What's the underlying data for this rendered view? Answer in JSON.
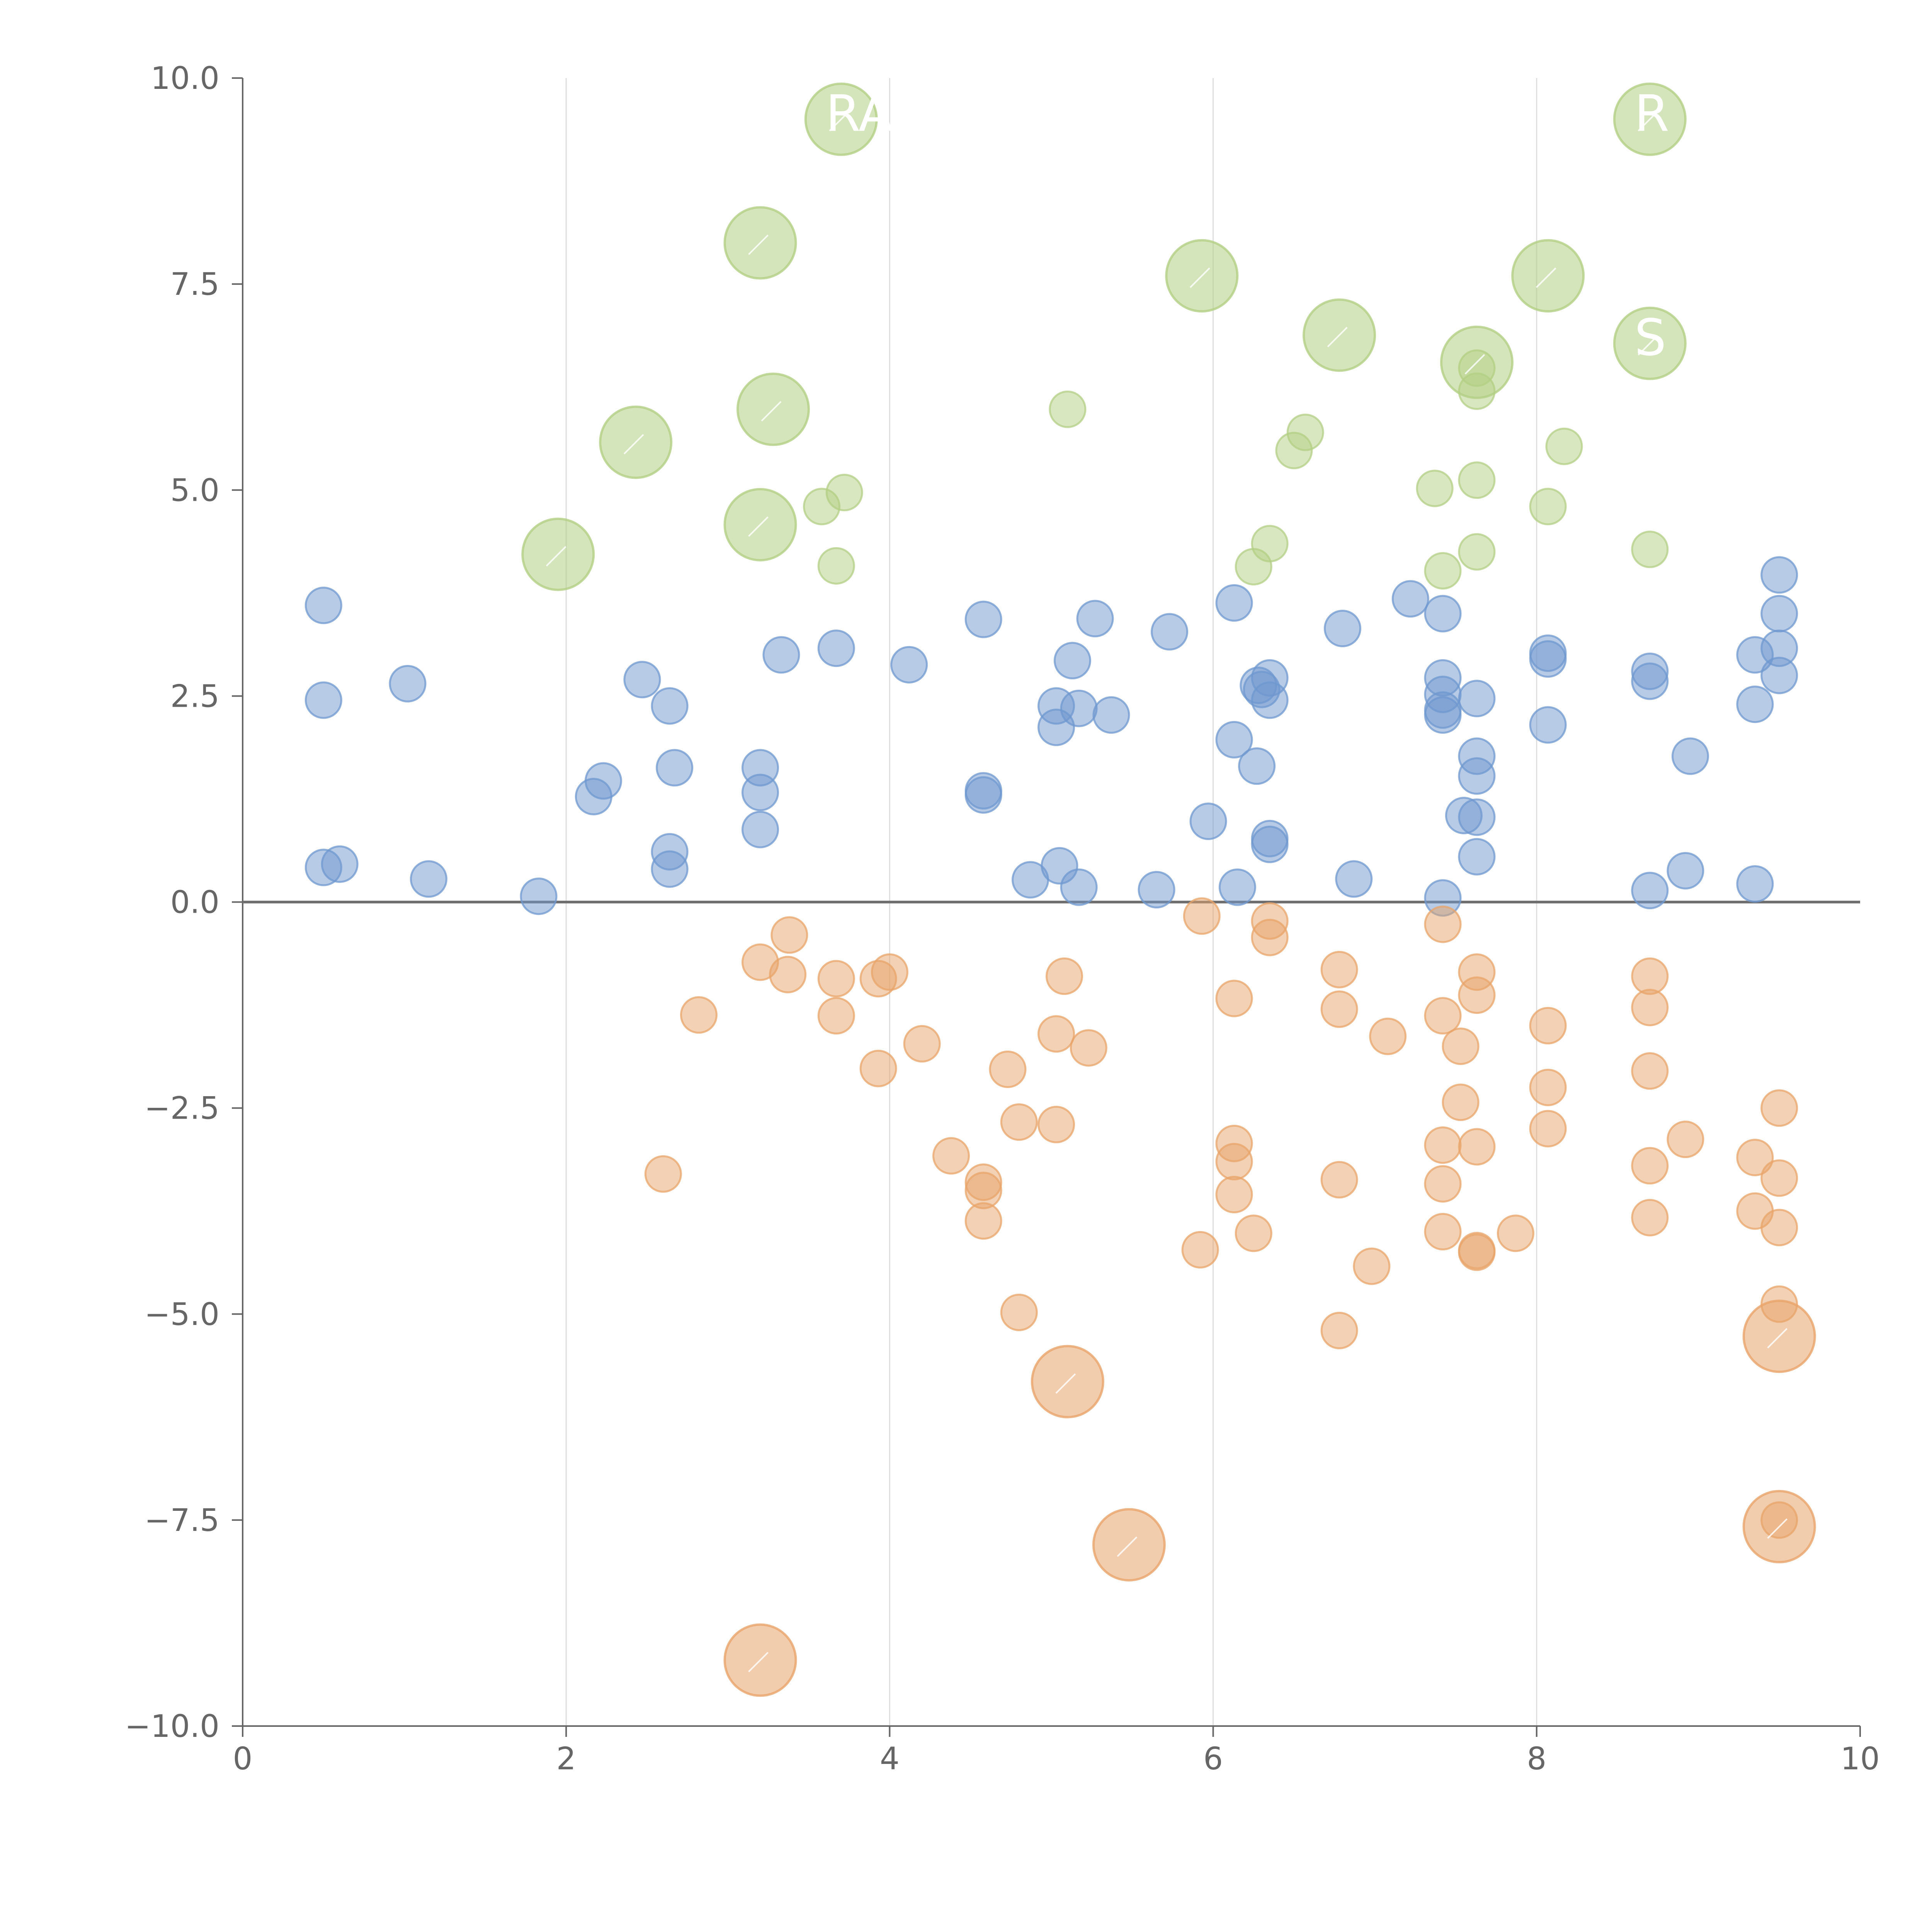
{
  "chart_data": {
    "type": "scatter",
    "title": "",
    "xlabel": "",
    "ylabel": "",
    "xlim": [
      0,
      10
    ],
    "ylim": [
      -10,
      10
    ],
    "x_ticks": [
      "0",
      "2",
      "4",
      "6",
      "8",
      "10"
    ],
    "y_ticks": [
      "10.0",
      "7.5",
      "5.0",
      "2.5",
      "0.0",
      "−2.5",
      "−5.0",
      "−7.5",
      "−10.0"
    ],
    "x_tick_values": [
      0,
      2,
      4,
      6,
      8,
      10
    ],
    "y_tick_values": [
      10,
      7.5,
      5,
      2.5,
      0,
      -2.5,
      -5,
      -7.5,
      -10
    ],
    "vertical_gridlines_at": [
      2,
      4,
      6,
      8
    ],
    "zero_line": true,
    "colors": {
      "positive": "#6f98cf",
      "negative": "#e8a46a",
      "highlight": "#b3cf84",
      "axis": "#666666",
      "grid": "#dddddd",
      "zero_line": "#707070"
    },
    "series": [
      {
        "name": "positive",
        "color": "#6f98cf",
        "points": [
          [
            0.5,
            3.6
          ],
          [
            0.5,
            2.45
          ],
          [
            0.5,
            0.42
          ],
          [
            0.6,
            0.46
          ],
          [
            1.02,
            2.65
          ],
          [
            1.15,
            0.28
          ],
          [
            1.83,
            0.07
          ],
          [
            2.17,
            1.28
          ],
          [
            2.23,
            1.47
          ],
          [
            2.47,
            2.7
          ],
          [
            2.64,
            2.38
          ],
          [
            2.64,
            0.61
          ],
          [
            2.64,
            0.4
          ],
          [
            2.67,
            1.63
          ],
          [
            3.2,
            1.63
          ],
          [
            3.2,
            1.33
          ],
          [
            3.2,
            0.88
          ],
          [
            3.33,
            3.0
          ],
          [
            3.67,
            3.08
          ],
          [
            4.12,
            2.88
          ],
          [
            4.58,
            3.43
          ],
          [
            4.58,
            1.35
          ],
          [
            4.58,
            1.3
          ],
          [
            4.87,
            0.27
          ],
          [
            5.03,
            2.38
          ],
          [
            5.03,
            2.12
          ],
          [
            5.05,
            0.44
          ],
          [
            5.13,
            2.93
          ],
          [
            5.17,
            2.35
          ],
          [
            5.17,
            0.18
          ],
          [
            5.27,
            3.44
          ],
          [
            5.37,
            2.27
          ],
          [
            5.65,
            0.15
          ],
          [
            5.73,
            3.28
          ],
          [
            5.97,
            0.98
          ],
          [
            6.13,
            3.63
          ],
          [
            6.13,
            1.97
          ],
          [
            6.15,
            0.18
          ],
          [
            6.27,
            1.65
          ],
          [
            6.28,
            2.63
          ],
          [
            6.3,
            2.58
          ],
          [
            6.35,
            2.72
          ],
          [
            6.35,
            2.45
          ],
          [
            6.35,
            0.77
          ],
          [
            6.35,
            0.7
          ],
          [
            6.8,
            3.32
          ],
          [
            6.87,
            0.28
          ],
          [
            7.22,
            3.68
          ],
          [
            7.42,
            3.5
          ],
          [
            7.42,
            2.72
          ],
          [
            7.42,
            2.52
          ],
          [
            7.42,
            2.33
          ],
          [
            7.42,
            2.27
          ],
          [
            7.42,
            0.05
          ],
          [
            7.55,
            1.05
          ],
          [
            7.63,
            2.47
          ],
          [
            7.63,
            1.77
          ],
          [
            7.63,
            1.53
          ],
          [
            7.63,
            1.03
          ],
          [
            7.63,
            0.55
          ],
          [
            8.07,
            3.02
          ],
          [
            8.07,
            2.95
          ],
          [
            8.07,
            2.15
          ],
          [
            8.7,
            2.8
          ],
          [
            8.7,
            2.68
          ],
          [
            8.7,
            0.14
          ],
          [
            8.95,
            1.77
          ],
          [
            8.92,
            0.38
          ],
          [
            9.35,
            3.0
          ],
          [
            9.35,
            2.4
          ],
          [
            9.35,
            0.22
          ],
          [
            9.5,
            3.97
          ],
          [
            9.5,
            3.5
          ],
          [
            9.5,
            3.08
          ],
          [
            9.5,
            2.75
          ]
        ]
      },
      {
        "name": "negative",
        "color": "#e8a46a",
        "points": [
          [
            2.6,
            -3.3
          ],
          [
            2.82,
            -1.37
          ],
          [
            3.2,
            -0.73
          ],
          [
            3.37,
            -0.88
          ],
          [
            3.38,
            -0.4
          ],
          [
            3.67,
            -0.93
          ],
          [
            3.67,
            -1.38
          ],
          [
            3.93,
            -0.93
          ],
          [
            3.93,
            -2.02
          ],
          [
            4.0,
            -0.85
          ],
          [
            4.2,
            -1.72
          ],
          [
            4.38,
            -3.08
          ],
          [
            4.58,
            -3.4
          ],
          [
            4.58,
            -3.5
          ],
          [
            4.58,
            -3.87
          ],
          [
            4.73,
            -2.03
          ],
          [
            4.8,
            -2.67
          ],
          [
            4.8,
            -4.98
          ],
          [
            5.03,
            -1.6
          ],
          [
            5.03,
            -2.7
          ],
          [
            5.08,
            -0.9
          ],
          [
            5.23,
            -1.77
          ],
          [
            5.93,
            -0.17
          ],
          [
            5.92,
            -4.22
          ],
          [
            6.13,
            -1.17
          ],
          [
            6.13,
            -2.93
          ],
          [
            6.13,
            -3.15
          ],
          [
            6.13,
            -3.55
          ],
          [
            6.25,
            -4.02
          ],
          [
            6.35,
            -0.23
          ],
          [
            6.35,
            -0.43
          ],
          [
            6.78,
            -0.82
          ],
          [
            6.78,
            -1.3
          ],
          [
            6.78,
            -3.37
          ],
          [
            6.78,
            -5.2
          ],
          [
            6.98,
            -4.42
          ],
          [
            7.08,
            -1.63
          ],
          [
            7.42,
            -0.27
          ],
          [
            7.42,
            -1.38
          ],
          [
            7.42,
            -2.95
          ],
          [
            7.42,
            -3.42
          ],
          [
            7.42,
            -4.0
          ],
          [
            7.53,
            -1.75
          ],
          [
            7.53,
            -2.43
          ],
          [
            7.63,
            -0.85
          ],
          [
            7.63,
            -1.13
          ],
          [
            7.63,
            -2.97
          ],
          [
            7.63,
            -4.23
          ],
          [
            7.63,
            -4.25
          ],
          [
            7.87,
            -4.02
          ],
          [
            8.07,
            -1.5
          ],
          [
            8.07,
            -2.25
          ],
          [
            8.07,
            -2.75
          ],
          [
            8.7,
            -0.9
          ],
          [
            8.7,
            -1.28
          ],
          [
            8.7,
            -2.05
          ],
          [
            8.7,
            -3.2
          ],
          [
            8.7,
            -3.83
          ],
          [
            8.92,
            -2.88
          ],
          [
            9.35,
            -3.1
          ],
          [
            9.35,
            -3.75
          ],
          [
            9.5,
            -2.5
          ],
          [
            9.5,
            -3.35
          ],
          [
            9.5,
            -3.95
          ],
          [
            9.5,
            -4.88
          ],
          [
            9.5,
            -7.5
          ]
        ]
      },
      {
        "name": "highlight",
        "color": "#b3cf84",
        "points": [
          [
            3.58,
            4.8
          ],
          [
            3.67,
            4.08
          ],
          [
            3.72,
            4.97
          ],
          [
            5.1,
            5.98
          ],
          [
            6.25,
            4.07
          ],
          [
            6.35,
            4.35
          ],
          [
            6.5,
            5.48
          ],
          [
            6.57,
            5.7
          ],
          [
            7.37,
            5.02
          ],
          [
            7.42,
            4.02
          ],
          [
            7.63,
            6.48
          ],
          [
            7.63,
            6.2
          ],
          [
            7.63,
            5.12
          ],
          [
            7.63,
            4.25
          ],
          [
            8.07,
            4.8
          ],
          [
            8.17,
            5.53
          ],
          [
            8.7,
            4.28
          ]
        ]
      }
    ],
    "labeled_bubbles": [
      {
        "group": "highlight",
        "x": 3.7,
        "y": 9.5,
        "label": "RA"
      },
      {
        "group": "highlight",
        "x": 8.7,
        "y": 9.5,
        "label": "R"
      },
      {
        "group": "highlight",
        "x": 3.2,
        "y": 8.0,
        "label": ""
      },
      {
        "group": "highlight",
        "x": 5.93,
        "y": 7.6,
        "label": ""
      },
      {
        "group": "highlight",
        "x": 8.07,
        "y": 7.6,
        "label": ""
      },
      {
        "group": "highlight",
        "x": 6.78,
        "y": 6.88,
        "label": ""
      },
      {
        "group": "highlight",
        "x": 7.63,
        "y": 6.55,
        "label": ""
      },
      {
        "group": "highlight",
        "x": 8.7,
        "y": 6.78,
        "label": "S"
      },
      {
        "group": "highlight",
        "x": 3.28,
        "y": 5.98,
        "label": ""
      },
      {
        "group": "highlight",
        "x": 2.43,
        "y": 5.58,
        "label": ""
      },
      {
        "group": "highlight",
        "x": 3.2,
        "y": 4.58,
        "label": ""
      },
      {
        "group": "highlight",
        "x": 1.95,
        "y": 4.22,
        "label": ""
      },
      {
        "group": "negative",
        "x": 5.1,
        "y": -5.82,
        "label": ""
      },
      {
        "group": "negative",
        "x": 9.5,
        "y": -5.27,
        "label": ""
      },
      {
        "group": "negative",
        "x": 5.48,
        "y": -7.8,
        "label": ""
      },
      {
        "group": "negative",
        "x": 9.5,
        "y": -7.58,
        "label": ""
      },
      {
        "group": "negative",
        "x": 3.2,
        "y": -9.2,
        "label": ""
      }
    ]
  }
}
